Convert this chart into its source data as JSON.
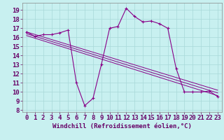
{
  "background_color": "#c8f0f0",
  "grid_color": "#a8d8d8",
  "line_color": "#880088",
  "xlabel": "Windchill (Refroidissement éolien,°C)",
  "ylabel_ticks": [
    8,
    9,
    10,
    11,
    12,
    13,
    14,
    15,
    16,
    17,
    18,
    19
  ],
  "xlabel_ticks": [
    0,
    1,
    2,
    3,
    4,
    5,
    6,
    7,
    8,
    9,
    10,
    11,
    12,
    13,
    14,
    15,
    16,
    17,
    18,
    19,
    20,
    21,
    22,
    23
  ],
  "ylim": [
    7.8,
    19.8
  ],
  "xlim": [
    -0.5,
    23.5
  ],
  "series1_x": [
    0,
    1,
    2,
    3,
    4,
    5,
    6,
    7,
    8,
    9,
    10,
    11,
    12,
    13,
    14,
    15,
    16,
    17,
    18,
    19,
    20,
    21,
    22,
    23
  ],
  "series1_y": [
    16.6,
    16.1,
    16.3,
    16.3,
    16.5,
    16.8,
    11.0,
    8.5,
    9.3,
    13.0,
    17.0,
    17.2,
    19.2,
    18.3,
    17.7,
    17.8,
    17.5,
    17.0,
    12.6,
    10.0,
    10.0,
    10.0,
    10.1,
    9.5
  ],
  "series2_x": [
    0,
    23
  ],
  "series2_y": [
    16.6,
    10.2
  ],
  "series3_x": [
    0,
    23
  ],
  "series3_y": [
    16.4,
    9.9
  ],
  "series4_x": [
    0,
    23
  ],
  "series4_y": [
    16.2,
    9.6
  ],
  "font_size_ticks": 6.5,
  "font_size_xlabel": 6.5
}
